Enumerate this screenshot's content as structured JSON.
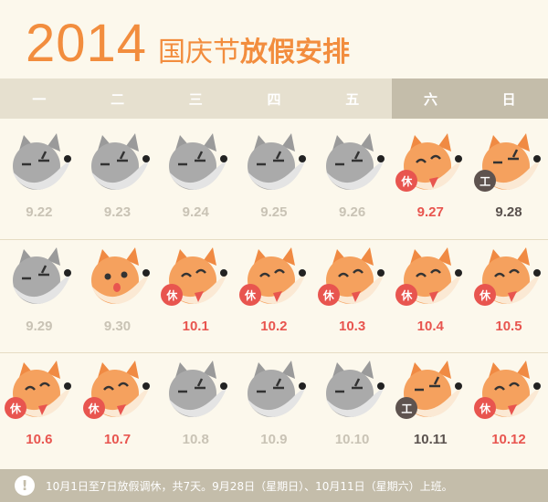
{
  "title": {
    "year": "2014",
    "sub1": "国庆节",
    "sub2": "放假安排"
  },
  "weekdays": [
    "一",
    "二",
    "三",
    "四",
    "五",
    "六",
    "日"
  ],
  "colors": {
    "orange": "#f28d3e",
    "holiday": "#e8554f",
    "workday": "#5e534f",
    "muted": "#c9c3b5"
  },
  "legend": {
    "rest": "休",
    "work": "工"
  },
  "weeks": [
    [
      {
        "date": "9.22",
        "status": "normal",
        "face": "wolf-icon"
      },
      {
        "date": "9.23",
        "status": "normal",
        "face": "wolf-icon"
      },
      {
        "date": "9.24",
        "status": "normal",
        "face": "wolf-icon"
      },
      {
        "date": "9.25",
        "status": "normal",
        "face": "wolf-icon"
      },
      {
        "date": "9.26",
        "status": "normal",
        "face": "wolf-icon"
      },
      {
        "date": "9.27",
        "status": "holiday",
        "face": "fox-happy-icon",
        "badge": "休"
      },
      {
        "date": "9.28",
        "status": "workday",
        "face": "fox-tired-icon",
        "badge": "工"
      }
    ],
    [
      {
        "date": "9.29",
        "status": "normal",
        "face": "wolf-icon"
      },
      {
        "date": "9.30",
        "status": "normal",
        "face": "fox-excited-icon"
      },
      {
        "date": "10.1",
        "status": "holiday",
        "face": "fox-happy-icon",
        "badge": "休"
      },
      {
        "date": "10.2",
        "status": "holiday",
        "face": "fox-happy-icon",
        "badge": "休"
      },
      {
        "date": "10.3",
        "status": "holiday",
        "face": "fox-happy-icon",
        "badge": "休"
      },
      {
        "date": "10.4",
        "status": "holiday",
        "face": "fox-happy-icon",
        "badge": "休"
      },
      {
        "date": "10.5",
        "status": "holiday",
        "face": "fox-happy-icon",
        "badge": "休"
      }
    ],
    [
      {
        "date": "10.6",
        "status": "holiday",
        "face": "fox-happy-icon",
        "badge": "休"
      },
      {
        "date": "10.7",
        "status": "holiday",
        "face": "fox-happy-icon",
        "badge": "休"
      },
      {
        "date": "10.8",
        "status": "normal",
        "face": "wolf-icon"
      },
      {
        "date": "10.9",
        "status": "normal",
        "face": "wolf-icon"
      },
      {
        "date": "10.10",
        "status": "normal",
        "face": "wolf-icon"
      },
      {
        "date": "10.11",
        "status": "workday",
        "face": "fox-tired-icon",
        "badge": "工"
      },
      {
        "date": "10.12",
        "status": "holiday",
        "face": "fox-happy-icon",
        "badge": "休"
      }
    ]
  ],
  "footer": {
    "icon": "info-icon",
    "note": "10月1日至7日放假调休，共7天。9月28日（星期日）、10月11日（星期六）上班。"
  }
}
